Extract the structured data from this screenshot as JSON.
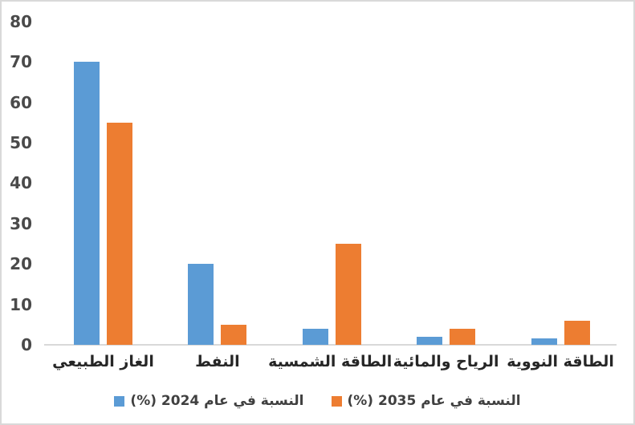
{
  "chart_data": {
    "type": "bar",
    "categories": [
      "الغاز الطبيعي",
      "النفط",
      "الطاقة الشمسية",
      "الرياح والمائية",
      "الطاقة النووية"
    ],
    "series": [
      {
        "year": "2024",
        "name": "النسبة في عام 2024 (%)",
        "color": "#5B9BD5",
        "values": [
          70,
          20,
          4,
          2,
          1.5
        ]
      },
      {
        "year": "2035",
        "name": "النسبة في عام 2035 (%)",
        "color": "#ED7D31",
        "values": [
          55,
          5,
          25,
          4,
          6
        ]
      }
    ],
    "ylim": [
      0,
      80
    ],
    "yticks": [
      0,
      10,
      20,
      30,
      40,
      50,
      60,
      70,
      80
    ],
    "grid": false,
    "legend_position": "bottom",
    "direction": "rtl"
  },
  "style": {
    "background": "#FFFFFF",
    "frame_border_color": "#D9D9D9",
    "axis_line_color": "#D9D9D9",
    "axis_text_color": "#4A4A4A",
    "category_text_color": "#262626",
    "legend_text_color": "#404040"
  }
}
